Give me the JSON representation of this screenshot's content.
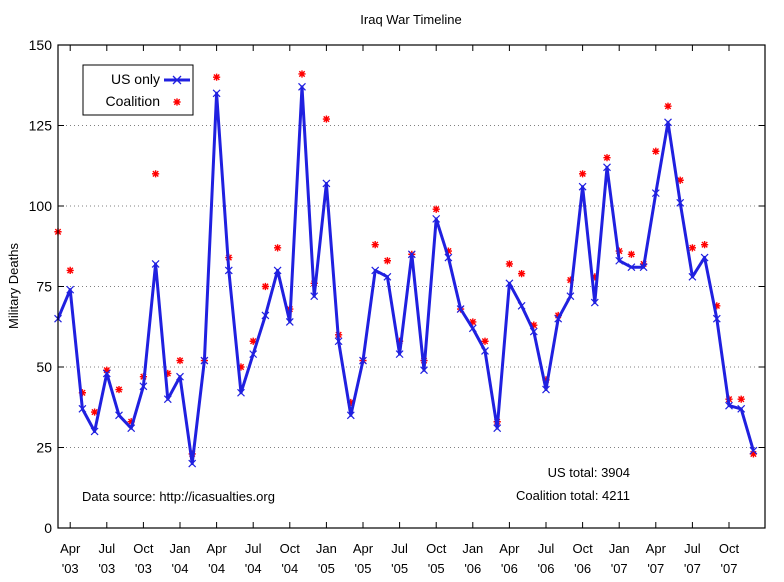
{
  "chart_data": {
    "type": "line",
    "title": "Iraq War Timeline",
    "xlabel": "",
    "ylabel": "Military Deaths",
    "ylim": [
      0,
      150
    ],
    "yticks": [
      0,
      25,
      50,
      75,
      100,
      125,
      150
    ],
    "x_start": "2003-03",
    "x_tick_labels": [
      {
        "month": "Apr",
        "year": "'03"
      },
      {
        "month": "Jul",
        "year": "'03"
      },
      {
        "month": "Oct",
        "year": "'03"
      },
      {
        "month": "Jan",
        "year": "'04"
      },
      {
        "month": "Apr",
        "year": "'04"
      },
      {
        "month": "Jul",
        "year": "'04"
      },
      {
        "month": "Oct",
        "year": "'04"
      },
      {
        "month": "Jan",
        "year": "'05"
      },
      {
        "month": "Apr",
        "year": "'05"
      },
      {
        "month": "Jul",
        "year": "'05"
      },
      {
        "month": "Oct",
        "year": "'05"
      },
      {
        "month": "Jan",
        "year": "'06"
      },
      {
        "month": "Apr",
        "year": "'06"
      },
      {
        "month": "Jul",
        "year": "'06"
      },
      {
        "month": "Oct",
        "year": "'06"
      },
      {
        "month": "Jan",
        "year": "'07"
      },
      {
        "month": "Apr",
        "year": "'07"
      },
      {
        "month": "Jul",
        "year": "'07"
      },
      {
        "month": "Oct",
        "year": "'07"
      }
    ],
    "legend_position": "top-left",
    "series": [
      {
        "name": "US only",
        "style": "line-with-x-markers",
        "color": "#2020e0",
        "values": [
          65,
          74,
          37,
          30,
          48,
          35,
          31,
          44,
          82,
          40,
          47,
          20,
          52,
          135,
          80,
          42,
          54,
          66,
          80,
          64,
          137,
          72,
          107,
          58,
          35,
          52,
          80,
          78,
          54,
          85,
          49,
          96,
          84,
          68,
          62,
          55,
          31,
          76,
          69,
          61,
          43,
          65,
          72,
          106,
          70,
          112,
          83,
          81,
          81,
          104,
          126,
          101,
          78,
          84,
          65,
          38,
          37,
          24
        ]
      },
      {
        "name": "Coalition",
        "style": "star-markers",
        "color": "#ff0000",
        "values": [
          92,
          80,
          42,
          36,
          49,
          43,
          33,
          47,
          110,
          48,
          52,
          23,
          52,
          140,
          84,
          50,
          58,
          75,
          87,
          68,
          141,
          76,
          127,
          60,
          39,
          52,
          88,
          83,
          58,
          85,
          52,
          99,
          86,
          68,
          64,
          58,
          33,
          82,
          79,
          63,
          46,
          66,
          77,
          110,
          78,
          115,
          86,
          85,
          82,
          117,
          131,
          108,
          87,
          88,
          69,
          40,
          40,
          23
        ]
      }
    ],
    "annotations": {
      "source": "Data source: http://icasualties.org",
      "us_total": "US total: 3904",
      "coalition_total": "Coalition total: 4211"
    }
  }
}
